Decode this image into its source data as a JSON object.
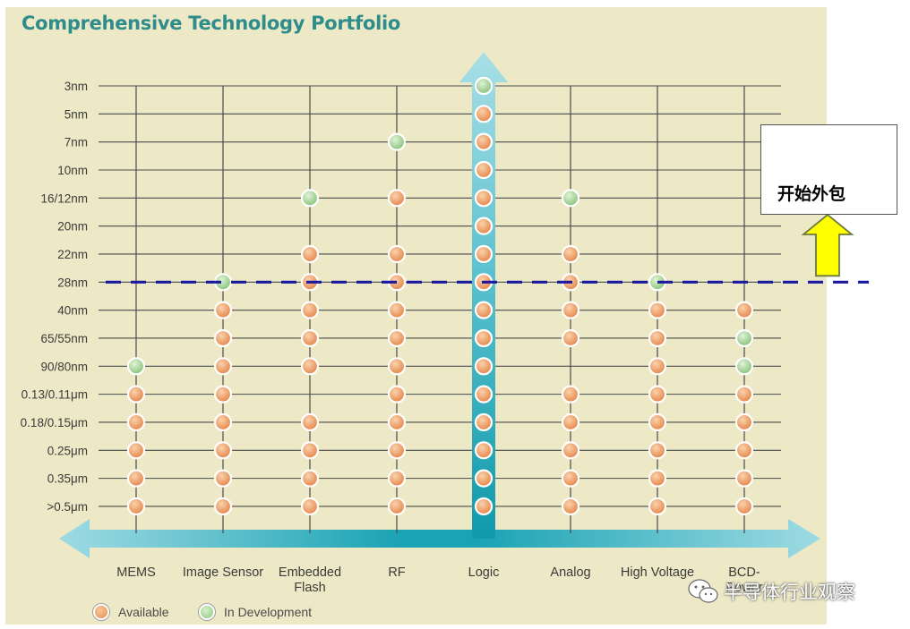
{
  "chart_data": {
    "type": "scatter",
    "title": "Comprehensive Technology Portfolio",
    "categories": [
      "MEMS",
      "Image Sensor",
      "Embedded\nFlash",
      "RF",
      "Logic",
      "Analog",
      "High Voltage",
      "BCD-\nPower"
    ],
    "nodes": [
      "3nm",
      "5nm",
      "7nm",
      "10nm",
      "16/12nm",
      "20nm",
      "22nm",
      "28nm",
      "40nm",
      "65/55nm",
      "90/80nm",
      "0.13/0.11μm",
      "0.18/0.15μm",
      "0.25μm",
      "0.35μm",
      ">0.5μm"
    ],
    "status_legend": {
      "A": "Available",
      "D": "In Development"
    },
    "matrix": [
      [
        "",
        "",
        "",
        "",
        "D",
        "",
        "",
        ""
      ],
      [
        "",
        "",
        "",
        "",
        "A",
        "",
        "",
        ""
      ],
      [
        "",
        "",
        "",
        "D",
        "A",
        "",
        "",
        ""
      ],
      [
        "",
        "",
        "",
        "",
        "A",
        "",
        "",
        ""
      ],
      [
        "",
        "",
        "D",
        "A",
        "A",
        "D",
        "",
        ""
      ],
      [
        "",
        "",
        "",
        "",
        "A",
        "",
        "",
        ""
      ],
      [
        "",
        "",
        "A",
        "A",
        "A",
        "A",
        "",
        ""
      ],
      [
        "",
        "D",
        "A",
        "A",
        "A",
        "A",
        "D",
        ""
      ],
      [
        "",
        "A",
        "A",
        "A",
        "A",
        "A",
        "A",
        "A"
      ],
      [
        "",
        "A",
        "A",
        "A",
        "A",
        "A",
        "A",
        "D"
      ],
      [
        "D",
        "A",
        "A",
        "A",
        "A",
        "",
        "A",
        "D"
      ],
      [
        "A",
        "A",
        "",
        "A",
        "A",
        "A",
        "A",
        "A"
      ],
      [
        "A",
        "A",
        "A",
        "A",
        "A",
        "A",
        "A",
        "A"
      ],
      [
        "A",
        "A",
        "A",
        "A",
        "A",
        "A",
        "A",
        "A"
      ],
      [
        "A",
        "A",
        "A",
        "A",
        "A",
        "A",
        "A",
        "A"
      ],
      [
        "A",
        "A",
        "A",
        "A",
        "A",
        "A",
        "A",
        "A"
      ]
    ],
    "threshold_node": "28nm",
    "colors": {
      "available": "#e88c4e",
      "in_development": "#8cc47e",
      "arrow": "#20a7b6",
      "dashed_line": "#1a1aa0",
      "callout_arrow": "#ffff00"
    }
  },
  "legend": {
    "available": "Available",
    "in_development": "In Development"
  },
  "callout": {
    "text": "开始外包"
  },
  "watermark": {
    "text": "半导体行业观察"
  }
}
